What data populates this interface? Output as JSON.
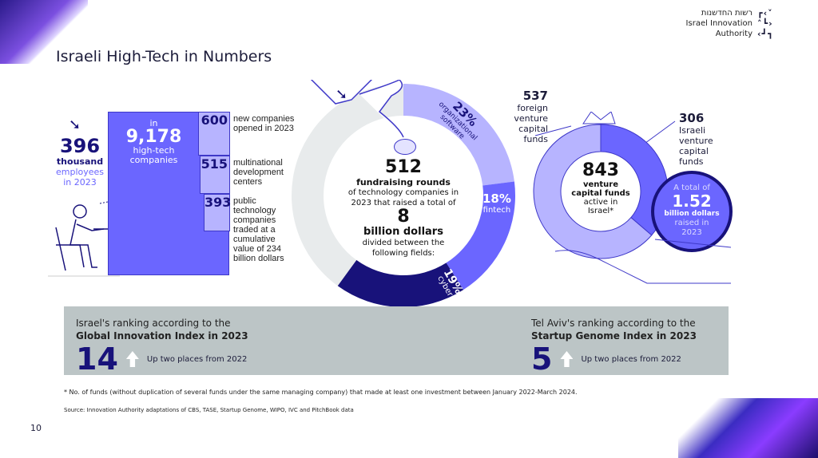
{
  "header": {
    "title": "Israeli High-Tech in Numbers",
    "logo_lines": [
      "רשות החדשנות",
      "Israel Innovation",
      "Authority"
    ]
  },
  "employees": {
    "value": "396",
    "unit": "thousand",
    "line1": "employees",
    "line2": "in 2023"
  },
  "companies": {
    "pre": "in",
    "value": "9,178",
    "line1": "high-tech",
    "line2": "companies"
  },
  "stats": [
    {
      "value": "600",
      "label": "new companies opened in 2023"
    },
    {
      "value": "515",
      "label": "multinational development centers"
    },
    {
      "value": "393",
      "label": "public technology companies traded at a cumulative value of 234 billion dollars"
    }
  ],
  "fundraising": {
    "value": "512",
    "bold": "fundraising rounds",
    "text1": "of technology companies in",
    "text2": "2023 that raised a total of",
    "amount": "8",
    "amount_unit": "billion dollars",
    "text3": "divided between the",
    "text4": "following fields:"
  },
  "fields": [
    {
      "pct": "23%",
      "name": "organizational software",
      "value": 23,
      "color": "#b7b4ff"
    },
    {
      "pct": "18%",
      "name": "fintech",
      "value": 18,
      "color": "#6b66ff"
    },
    {
      "pct": "19%",
      "name": "cyber",
      "value": 19,
      "color": "#18127a"
    },
    {
      "value": 40,
      "color": "#e8ebec"
    }
  ],
  "vc": {
    "total": "843",
    "bold": "venture capital funds",
    "text1": "active in",
    "text2": "Israel*",
    "foreign": {
      "value": "537",
      "label": "foreign venture capital funds",
      "n": 537
    },
    "israeli": {
      "value": "306",
      "label": "Israeli venture capital funds",
      "n": 306
    },
    "coin": {
      "pre": "A total of",
      "value": "1.52",
      "unit": "billion dollars",
      "post1": "raised in",
      "post2": "2023"
    }
  },
  "rankings": [
    {
      "line1": "Israel's ranking according to the",
      "line2": "Global Innovation Index in 2023",
      "rank": "14",
      "note": "Up two places from 2022"
    },
    {
      "line1": "Tel Aviv's ranking according to the",
      "line2": "Startup Genome Index in 2023",
      "rank": "5",
      "note": "Up two places from 2022"
    }
  ],
  "footnote": "* No. of funds (without duplication of several funds under the same managing company) that made at least one investment between January 2022-March 2024.",
  "source": "Source: Innovation Authority adaptations of CBS, TASE, Startup Genome, WIPO, IVC and PitchBook data",
  "page_number": "10"
}
